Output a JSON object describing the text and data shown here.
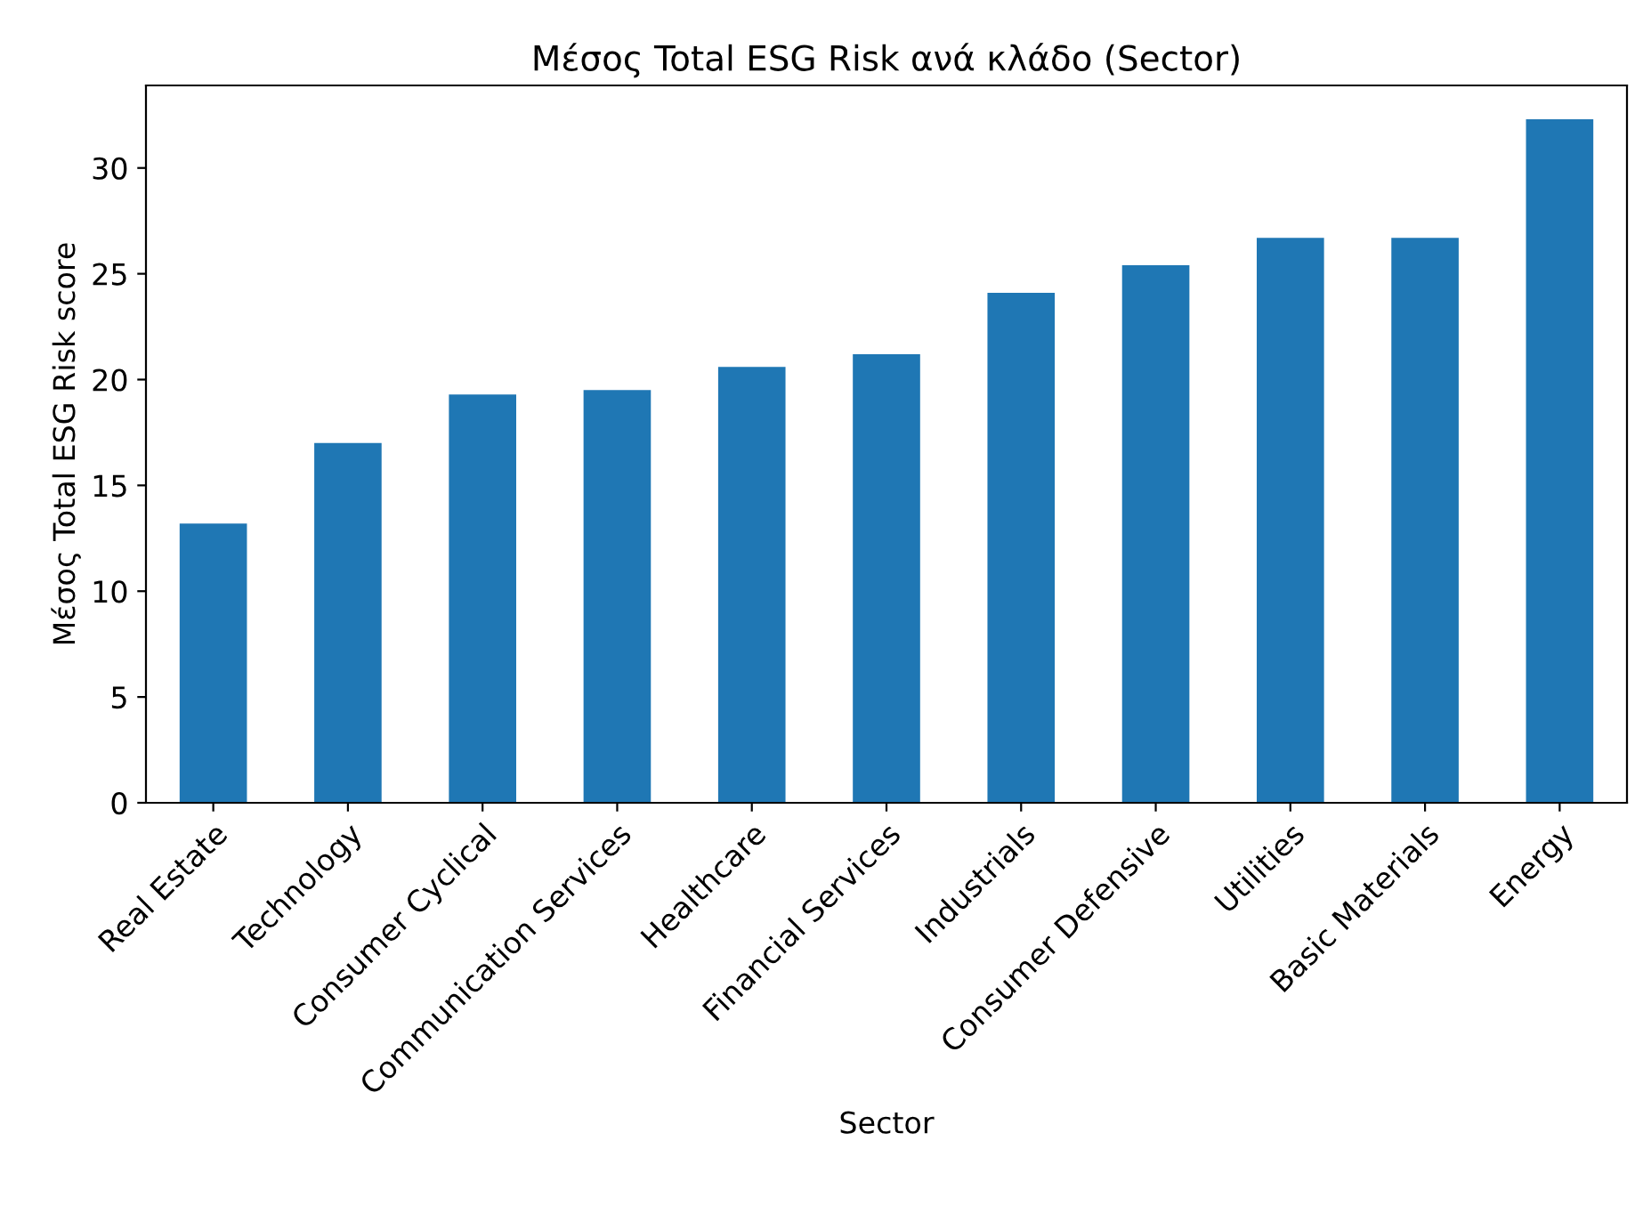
{
  "chart_data": {
    "type": "bar",
    "title": "Μέσος Total ESG Risk ανά κλάδο (Sector)",
    "xlabel": "Sector",
    "ylabel": "Μέσος Total ESG Risk score",
    "categories": [
      "Real Estate",
      "Technology",
      "Consumer Cyclical",
      "Communication Services",
      "Healthcare",
      "Financial Services",
      "Industrials",
      "Consumer Defensive",
      "Utilities",
      "Basic Materials",
      "Energy"
    ],
    "values": [
      13.2,
      17.0,
      19.3,
      19.5,
      20.6,
      21.2,
      24.1,
      25.4,
      26.7,
      26.7,
      32.3
    ],
    "color": "#1f77b4",
    "ylim": [
      0,
      33.9
    ],
    "yticks": [
      0,
      5,
      10,
      15,
      20,
      25,
      30
    ],
    "grid": false,
    "legend": false
  }
}
